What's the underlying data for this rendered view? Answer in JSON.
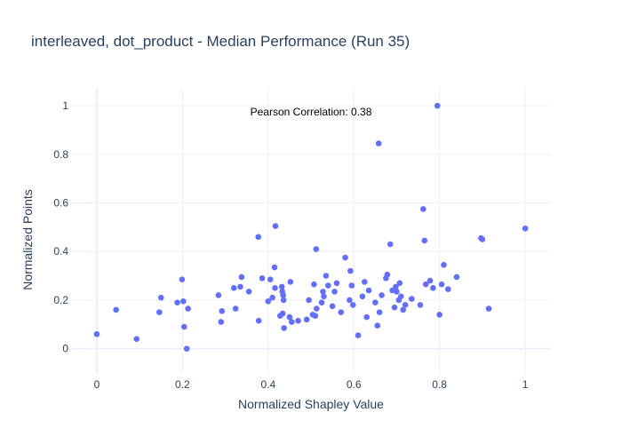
{
  "chart_data": {
    "type": "scatter",
    "title": "interleaved, dot_product - Median Performance (Run 35)",
    "xlabel": "Normalized Shapley Value",
    "ylabel": "Normalized Points",
    "xlim": [
      -0.06,
      1.06
    ],
    "ylim": [
      -0.1,
      1.07
    ],
    "xticks": [
      0,
      0.2,
      0.4,
      0.6,
      0.8,
      1
    ],
    "xtick_labels": [
      "0",
      "0.2",
      "0.4",
      "0.6",
      "0.8",
      "1"
    ],
    "yticks": [
      0,
      0.2,
      0.4,
      0.6,
      0.8,
      1
    ],
    "ytick_labels": [
      "0",
      "0.2",
      "0.4",
      "0.6",
      "0.8",
      "1"
    ],
    "grid": true,
    "marker_color": "#636efa",
    "annotation": "Pearson Correlation: 0.38",
    "points": [
      [
        0.0,
        0.06
      ],
      [
        0.045,
        0.16
      ],
      [
        0.093,
        0.04
      ],
      [
        0.146,
        0.15
      ],
      [
        0.15,
        0.21
      ],
      [
        0.188,
        0.19
      ],
      [
        0.199,
        0.285
      ],
      [
        0.202,
        0.195
      ],
      [
        0.204,
        0.09
      ],
      [
        0.21,
        0.0
      ],
      [
        0.213,
        0.165
      ],
      [
        0.284,
        0.22
      ],
      [
        0.29,
        0.11
      ],
      [
        0.292,
        0.155
      ],
      [
        0.32,
        0.25
      ],
      [
        0.324,
        0.165
      ],
      [
        0.335,
        0.255
      ],
      [
        0.338,
        0.295
      ],
      [
        0.355,
        0.235
      ],
      [
        0.377,
        0.46
      ],
      [
        0.378,
        0.115
      ],
      [
        0.386,
        0.29
      ],
      [
        0.4,
        0.195
      ],
      [
        0.405,
        0.285
      ],
      [
        0.41,
        0.21
      ],
      [
        0.415,
        0.335
      ],
      [
        0.416,
        0.25
      ],
      [
        0.417,
        0.505
      ],
      [
        0.428,
        0.135
      ],
      [
        0.432,
        0.255
      ],
      [
        0.433,
        0.235
      ],
      [
        0.434,
        0.145
      ],
      [
        0.435,
        0.22
      ],
      [
        0.436,
        0.2
      ],
      [
        0.437,
        0.085
      ],
      [
        0.45,
        0.13
      ],
      [
        0.452,
        0.275
      ],
      [
        0.455,
        0.11
      ],
      [
        0.47,
        0.115
      ],
      [
        0.49,
        0.12
      ],
      [
        0.495,
        0.2
      ],
      [
        0.504,
        0.14
      ],
      [
        0.507,
        0.265
      ],
      [
        0.51,
        0.135
      ],
      [
        0.512,
        0.41
      ],
      [
        0.513,
        0.165
      ],
      [
        0.525,
        0.19
      ],
      [
        0.528,
        0.235
      ],
      [
        0.53,
        0.215
      ],
      [
        0.535,
        0.3
      ],
      [
        0.54,
        0.26
      ],
      [
        0.55,
        0.175
      ],
      [
        0.555,
        0.235
      ],
      [
        0.56,
        0.27
      ],
      [
        0.57,
        0.15
      ],
      [
        0.58,
        0.375
      ],
      [
        0.59,
        0.2
      ],
      [
        0.592,
        0.32
      ],
      [
        0.595,
        0.26
      ],
      [
        0.598,
        0.18
      ],
      [
        0.61,
        0.055
      ],
      [
        0.62,
        0.215
      ],
      [
        0.625,
        0.275
      ],
      [
        0.63,
        0.13
      ],
      [
        0.635,
        0.24
      ],
      [
        0.65,
        0.19
      ],
      [
        0.655,
        0.095
      ],
      [
        0.658,
        0.845
      ],
      [
        0.66,
        0.15
      ],
      [
        0.665,
        0.22
      ],
      [
        0.675,
        0.29
      ],
      [
        0.678,
        0.305
      ],
      [
        0.685,
        0.43
      ],
      [
        0.69,
        0.24
      ],
      [
        0.695,
        0.17
      ],
      [
        0.698,
        0.255
      ],
      [
        0.7,
        0.235
      ],
      [
        0.705,
        0.2
      ],
      [
        0.707,
        0.27
      ],
      [
        0.71,
        0.215
      ],
      [
        0.715,
        0.16
      ],
      [
        0.72,
        0.18
      ],
      [
        0.735,
        0.205
      ],
      [
        0.755,
        0.18
      ],
      [
        0.762,
        0.575
      ],
      [
        0.765,
        0.445
      ],
      [
        0.768,
        0.265
      ],
      [
        0.778,
        0.28
      ],
      [
        0.785,
        0.25
      ],
      [
        0.795,
        1.0
      ],
      [
        0.8,
        0.14
      ],
      [
        0.805,
        0.265
      ],
      [
        0.81,
        0.345
      ],
      [
        0.82,
        0.245
      ],
      [
        0.84,
        0.295
      ],
      [
        0.897,
        0.455
      ],
      [
        0.9,
        0.45
      ],
      [
        0.915,
        0.165
      ],
      [
        1.0,
        0.495
      ]
    ]
  }
}
